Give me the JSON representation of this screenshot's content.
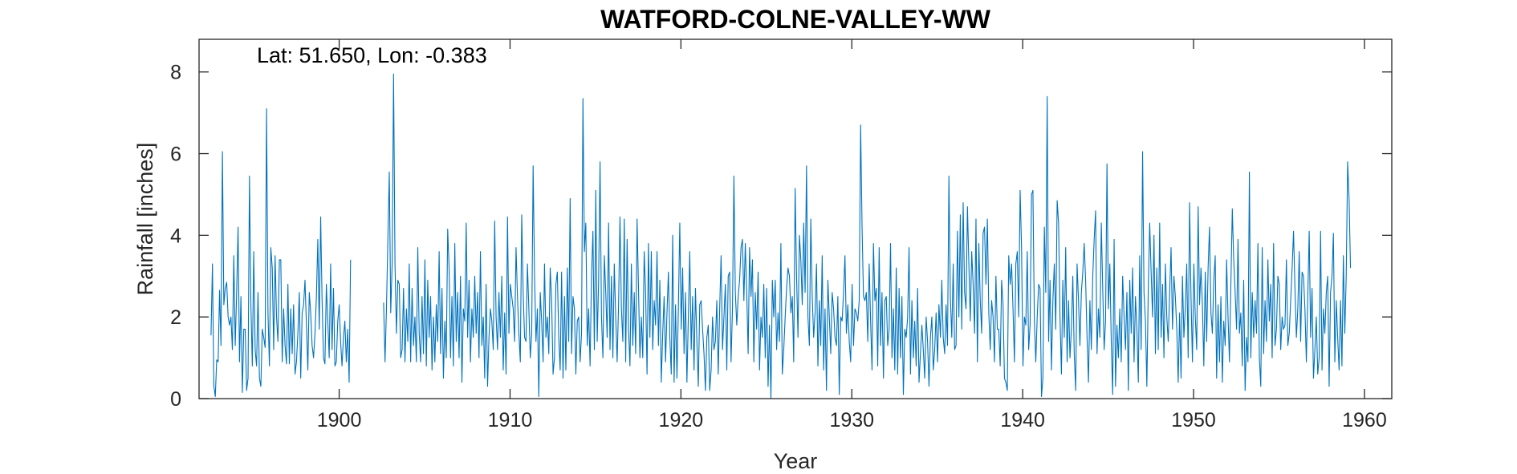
{
  "chart_data": {
    "type": "line",
    "title": "WATFORD-COLNE-VALLEY-WW",
    "annotation": "Lat: 51.650, Lon: -0.383",
    "xlabel": "Year",
    "ylabel": "Rainfall [inches]",
    "xlim": [
      1891.8,
      1961.6
    ],
    "ylim": [
      0,
      8.8
    ],
    "xticks": [
      1900,
      1910,
      1920,
      1930,
      1940,
      1950,
      1960
    ],
    "yticks": [
      0,
      2,
      4,
      6,
      8
    ],
    "grid": false,
    "box": true,
    "series": [
      {
        "color": "#0072BD",
        "sampling": "monthly",
        "segments": [
          {
            "start": 1892.5,
            "values": [
              1.55,
              3.3,
              0.3,
              0.05,
              0.95,
              0.9,
              2.65,
              1.3,
              6.05,
              2.3,
              2.7,
              2.85,
              2.0,
              1.8,
              2.0,
              1.2,
              3.5,
              1.3,
              2.6,
              4.2,
              0.9,
              2.5,
              0.15,
              1.7,
              1.7,
              0.2,
              0.5,
              5.45,
              2.3,
              0.8,
              3.6,
              1.2,
              0.8,
              2.6,
              0.5,
              0.3,
              1.7,
              1.5,
              1.25,
              7.1,
              2.1,
              0.8,
              3.7,
              3.2,
              1.2,
              3.5,
              2.0,
              1.4,
              3.4,
              3.4,
              0.9,
              2.2,
              1.3,
              0.85,
              2.8,
              0.85,
              2.2,
              1.1,
              2.3,
              0.6,
              0.9,
              1.6,
              2.6,
              0.5,
              2.1,
              2.3,
              2.9,
              1.8,
              0.7,
              2.6,
              2.1,
              1.3,
              1.0,
              1.6,
              2.5,
              3.9,
              1.7,
              4.45,
              2.4,
              1.0,
              0.85,
              2.8,
              1.9,
              1.0,
              3.3,
              1.2,
              2.7,
              0.8,
              0.9,
              1.9,
              2.3,
              1.4,
              0.8,
              1.5,
              1.9,
              0.9,
              1.7,
              0.4,
              3.4
            ]
          },
          {
            "start": 1902.6,
            "values": [
              2.35,
              0.9,
              2.2,
              3.9,
              5.55,
              2.1,
              3.3,
              7.95,
              3.3,
              1.6,
              2.9,
              2.8,
              1.0,
              1.2,
              2.7,
              0.9,
              2.2,
              1.4,
              3.3,
              0.9,
              2.7,
              1.3,
              2.0,
              0.9,
              3.7,
              1.6,
              0.9,
              2.5,
              1.1,
              3.4,
              0.8,
              2.9,
              1.5,
              2.5,
              0.7,
              2.0,
              0.9,
              2.3,
              1.4,
              3.6,
              1.1,
              2.7,
              0.5,
              1.9,
              1.0,
              4.15,
              3.2,
              1.0,
              2.5,
              0.8,
              3.8,
              1.4,
              2.6,
              1.0,
              3.0,
              0.4,
              2.2,
              1.9,
              4.3,
              1.5,
              2.9,
              0.9,
              2.2,
              1.5,
              3.0,
              1.6,
              2.6,
              1.0,
              3.6,
              1.3,
              2.0,
              0.5,
              2.8,
              0.3,
              1.5,
              2.2,
              1.9,
              1.2,
              4.35,
              2.0,
              1.2,
              2.6,
              1.5,
              3.0,
              0.7,
              2.1,
              0.6,
              4.45,
              1.6,
              2.8,
              2.5,
              2.2,
              1.4,
              3.7,
              2.5,
              1.6,
              0.9,
              4.5,
              2.6,
              1.5,
              1.4,
              3.3,
              2.2,
              1.0,
              1.6,
              5.7,
              3.0,
              1.4,
              2.2,
              0.05,
              2.6,
              1.9,
              0.9,
              3.3,
              1.5,
              2.0,
              1.1,
              3.2,
              2.4,
              0.6,
              1.0,
              2.8,
              3.1,
              1.5,
              0.7,
              3.1,
              0.5,
              2.5,
              0.7,
              3.2,
              1.4,
              4.9,
              1.1,
              2.5,
              2.2,
              0.6,
              1.9,
              2.0,
              0.9,
              1.6,
              7.35,
              3.6,
              4.3,
              1.3,
              2.2,
              0.8,
              3.0,
              4.1,
              1.2,
              5.1,
              1.4,
              2.9,
              5.8,
              2.0,
              1.0,
              3.5,
              2.6,
              1.5,
              4.3,
              1.2,
              3.0,
              1.0,
              3.3,
              2.0,
              0.9,
              2.3,
              4.45,
              2.2,
              1.4,
              4.4,
              0.9,
              3.9,
              1.7,
              0.8,
              3.3,
              1.3,
              2.6,
              1.1,
              4.4,
              2.7,
              1.0,
              2.0,
              1.0,
              3.6,
              2.6,
              0.6,
              3.8,
              1.5,
              3.6,
              1.2,
              2.4,
              1.8,
              3.6,
              1.3,
              2.9,
              0.4,
              1.6,
              2.5,
              0.9,
              2.1,
              3.1,
              1.5,
              0.6,
              4.0,
              0.4,
              2.3,
              0.5,
              2.2,
              4.3,
              1.7,
              3.2,
              1.1,
              2.6,
              0.4,
              2.0,
              3.6,
              1.2,
              2.5,
              0.7,
              2.7,
              1.4,
              0.3,
              2.3,
              2.4,
              1.7,
              1.1,
              0.2,
              1.5,
              1.8,
              0.2,
              0.7,
              2.0,
              1.2,
              1.4,
              2.4,
              0.6,
              2.2,
              3.5,
              1.2,
              2.0,
              2.8,
              0.7,
              3.0,
              3.1,
              0.9,
              2.2,
              5.45,
              2.6,
              1.8,
              2.5,
              2.9,
              3.7,
              3.9,
              2.4,
              3.8,
              2.6,
              1.1,
              3.7,
              2.5,
              3.4,
              0.9,
              2.6,
              1.7,
              3.1,
              0.7,
              2.0,
              1.5,
              2.8,
              1.0,
              2.7,
              0.3,
              1.8,
              0.0,
              2.9,
              2.0,
              2.9,
              1.2,
              2.1,
              1.4,
              3.8,
              0.6,
              1.2,
              2.0,
              2.7,
              3.2,
              3.0,
              2.1,
              2.5,
              0.9,
              5.15,
              3.0,
              1.5,
              4.0,
              3.4,
              2.3,
              4.3,
              2.6,
              5.7,
              2.0,
              1.3,
              4.4,
              2.5,
              1.5,
              2.1,
              3.3,
              0.8,
              2.4,
              1.3,
              3.5,
              0.7,
              2.2,
              0.2,
              2.9,
              2.0,
              1.1,
              2.6,
              2.2,
              1.5,
              1.3,
              2.5,
              0.1,
              2.0,
              1.9,
              2.6,
              3.5,
              1.6,
              2.3,
              1.4,
              0.9,
              2.8,
              1.3,
              2.2,
              2.1,
              1.9,
              2.4,
              6.7,
              4.2,
              2.5,
              2.4,
              2.6,
              1.4,
              3.3,
              1.9,
              0.7,
              3.8,
              2.4,
              2.7,
              0.8,
              3.7,
              1.3,
              2.6,
              0.5,
              2.4,
              2.5,
              1.3,
              1.7,
              3.8,
              1.0,
              2.2,
              0.7,
              3.2,
              0.6,
              2.7,
              1.0,
              2.5,
              0.1,
              1.7,
              1.5,
              2.0,
              3.7,
              0.6,
              2.4,
              1.0,
              1.9,
              0.8,
              2.7,
              0.4,
              1.1,
              1.8,
              1.2,
              0.5,
              2.0,
              1.4,
              0.3,
              1.5,
              2.0,
              0.7,
              1.2,
              2.1,
              0.9,
              2.3,
              1.5,
              2.9,
              1.5,
              1.1,
              2.3,
              1.3,
              5.45,
              2.5,
              1.5,
              3.3,
              1.2,
              1.3,
              4.1,
              2.0,
              4.5,
              1.7,
              4.8,
              2.6,
              2.2,
              4.7,
              3.3,
              1.9,
              3.6,
              2.8,
              1.6,
              4.4,
              0.9,
              3.8,
              2.4,
              1.6,
              4.05,
              4.2,
              2.8,
              4.4,
              2.1,
              1.2,
              2.4,
              2.0,
              0.9,
              3.0,
              1.7,
              1.7,
              0.8,
              2.9,
              2.3,
              0.5,
              0.4,
              0.2,
              3.5,
              2.8,
              3.3,
              2.2,
              0.9,
              3.3,
              3.6,
              2.0,
              5.1,
              3.7,
              0.8,
              2.0,
              1.8,
              3.6,
              1.2,
              1.8,
              5.0,
              5.1,
              1.9,
              0.9,
              2.0,
              2.8,
              2.7,
              0.05,
              0.5,
              4.2,
              2.6,
              7.4,
              1.4,
              2.9,
              0.7,
              2.4,
              3.3,
              1.7,
              4.85,
              4.3,
              2.0,
              0.6,
              2.9,
              1.5,
              3.7,
              0.9,
              2.4,
              1.0,
              1.7,
              3.0,
              1.1,
              0.2,
              3.3,
              2.4,
              1.3,
              2.6,
              3.1,
              3.8,
              2.9,
              1.5,
              0.4,
              2.4,
              1.2,
              3.0,
              3.9,
              4.6,
              1.1,
              2.2,
              1.5,
              4.3,
              2.7,
              1.2,
              1.9,
              5.75,
              2.2,
              3.3,
              1.4,
              0.1,
              3.9,
              0.3,
              1.8,
              1.0,
              2.2,
              0.9,
              3.0,
              2.0,
              1.2,
              2.6,
              0.2,
              2.9,
              1.6,
              3.2,
              0.9,
              2.5,
              1.7,
              0.4,
              3.5,
              1.2,
              6.05,
              2.6,
              1.9,
              0.3,
              2.7,
              4.3,
              3.1,
              2.0,
              4.0,
              1.1,
              3.2,
              1.2,
              4.3,
              1.5,
              2.8,
              1.0,
              3.3,
              2.0,
              1.4,
              2.6,
              3.7,
              1.7,
              3.0,
              2.5,
              1.7,
              0.4,
              2.1,
              0.5,
              3.0,
              1.5,
              2.2,
              3.3,
              1.0,
              4.8,
              2.5,
              0.9,
              3.3,
              2.0,
              1.2,
              4.7,
              2.3,
              3.2,
              2.3,
              0.8,
              3.1,
              1.4,
              3.2,
              4.2,
              2.1,
              1.6,
              2.9,
              3.5,
              0.5,
              2.3,
              0.9,
              2.5,
              0.4,
              1.9,
              1.3,
              3.4,
              2.0,
              0.9,
              2.8,
              4.65,
              3.4,
              2.6,
              1.7,
              3.9,
              1.6,
              2.1,
              0.8,
              2.9,
              0.2,
              1.5,
              0.9,
              5.55,
              1.0,
              2.6,
              1.5,
              2.4,
              1.6,
              3.8,
              1.0,
              0.3,
              3.7,
              1.1,
              2.4,
              1.4,
              3.4,
              1.9,
              2.8,
              1.0,
              3.8,
              1.3,
              1.7,
              3.0,
              2.8,
              1.2,
              2.0,
              1.7,
              1.8,
              3.4,
              1.3,
              1.6,
              2.4,
              3.2,
              4.1,
              2.7,
              1.5,
              2.2,
              3.6,
              1.4,
              3.1,
              3.0,
              2.2,
              0.9,
              2.5,
              4.1,
              1.5,
              2.7,
              0.5,
              1.2,
              2.0,
              0.6,
              1.0,
              4.1,
              0.7,
              2.2,
              1.6,
              2.6,
              3.0,
              0.3,
              2.6,
              3.0,
              4.05,
              0.9,
              2.4,
              1.5,
              0.7,
              2.4,
              0.8,
              3.5,
              1.6,
              3.0,
              5.8,
              4.9,
              3.2
            ]
          }
        ]
      }
    ]
  }
}
